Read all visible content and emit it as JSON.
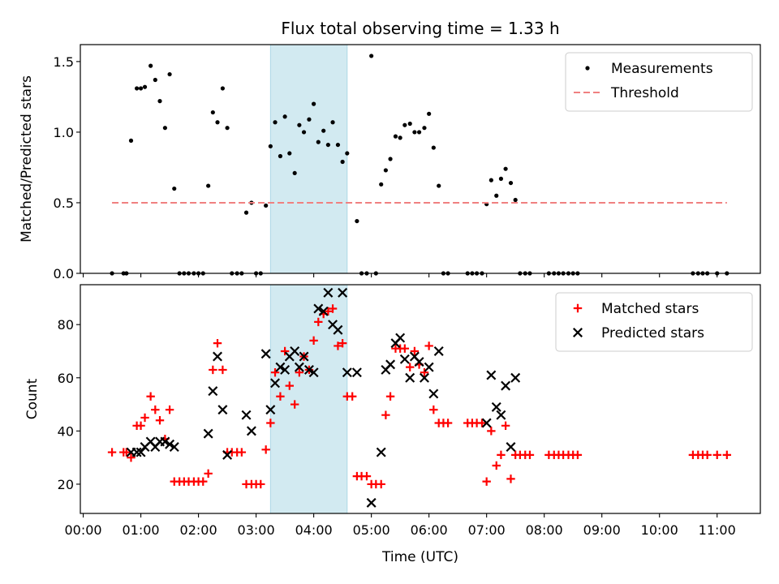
{
  "chart_data": [
    {
      "type": "scatter",
      "title": "Flux total observing time = 1.33 h",
      "xlabel": "",
      "ylabel": "Matched/Predicted stars",
      "xlim": [
        -0.05,
        11.75
      ],
      "ylim": [
        0.0,
        1.62
      ],
      "yticks": [
        0.0,
        0.5,
        1.0,
        1.5
      ],
      "ytick_labels": [
        "0.0",
        "0.5",
        "1.0",
        "1.5"
      ],
      "highlight_span": [
        3.25,
        4.58
      ],
      "highlight_color": "#add8e6",
      "legend_position": "top-right",
      "series": [
        {
          "name": "Measurements",
          "kind": "dot",
          "color": "#000000",
          "points": [
            [
              0.5,
              0
            ],
            [
              0.7,
              0
            ],
            [
              0.75,
              0
            ],
            [
              0.83,
              0.94
            ],
            [
              0.93,
              1.31
            ],
            [
              1.0,
              1.31
            ],
            [
              1.07,
              1.32
            ],
            [
              1.17,
              1.47
            ],
            [
              1.25,
              1.37
            ],
            [
              1.33,
              1.22
            ],
            [
              1.42,
              1.03
            ],
            [
              1.5,
              1.41
            ],
            [
              1.58,
              0.6
            ],
            [
              1.67,
              0
            ],
            [
              1.75,
              0
            ],
            [
              1.83,
              0
            ],
            [
              1.92,
              0
            ],
            [
              2.0,
              0
            ],
            [
              2.08,
              0
            ],
            [
              2.17,
              0.62
            ],
            [
              2.25,
              1.14
            ],
            [
              2.33,
              1.07
            ],
            [
              2.42,
              1.31
            ],
            [
              2.5,
              1.03
            ],
            [
              2.58,
              0
            ],
            [
              2.67,
              0
            ],
            [
              2.75,
              0
            ],
            [
              2.83,
              0.43
            ],
            [
              2.92,
              0.5
            ],
            [
              3.0,
              0
            ],
            [
              3.08,
              0
            ],
            [
              3.17,
              0.48
            ],
            [
              3.25,
              0.9
            ],
            [
              3.33,
              1.07
            ],
            [
              3.42,
              0.83
            ],
            [
              3.5,
              1.11
            ],
            [
              3.58,
              0.85
            ],
            [
              3.67,
              0.71
            ],
            [
              3.75,
              1.05
            ],
            [
              3.83,
              1.0
            ],
            [
              3.92,
              1.09
            ],
            [
              4.0,
              1.2
            ],
            [
              4.08,
              0.93
            ],
            [
              4.17,
              1.01
            ],
            [
              4.25,
              0.91
            ],
            [
              4.33,
              1.07
            ],
            [
              4.42,
              0.91
            ],
            [
              4.5,
              0.79
            ],
            [
              4.58,
              0.85
            ],
            [
              4.75,
              0.37
            ],
            [
              4.83,
              0
            ],
            [
              4.92,
              0
            ],
            [
              5.0,
              1.54
            ],
            [
              5.08,
              0
            ],
            [
              5.17,
              0.63
            ],
            [
              5.25,
              0.73
            ],
            [
              5.33,
              0.81
            ],
            [
              5.42,
              0.97
            ],
            [
              5.5,
              0.96
            ],
            [
              5.58,
              1.05
            ],
            [
              5.67,
              1.06
            ],
            [
              5.75,
              1.0
            ],
            [
              5.83,
              1.0
            ],
            [
              5.92,
              1.03
            ],
            [
              6.0,
              1.13
            ],
            [
              6.08,
              0.89
            ],
            [
              6.17,
              0.62
            ],
            [
              6.25,
              0
            ],
            [
              6.33,
              0
            ],
            [
              6.67,
              0
            ],
            [
              6.75,
              0
            ],
            [
              6.83,
              0
            ],
            [
              6.92,
              0
            ],
            [
              7.0,
              0.49
            ],
            [
              7.08,
              0.66
            ],
            [
              7.17,
              0.55
            ],
            [
              7.25,
              0.67
            ],
            [
              7.33,
              0.74
            ],
            [
              7.42,
              0.64
            ],
            [
              7.5,
              0.52
            ],
            [
              7.58,
              0
            ],
            [
              7.67,
              0
            ],
            [
              7.75,
              0
            ],
            [
              8.08,
              0
            ],
            [
              8.17,
              0
            ],
            [
              8.25,
              0
            ],
            [
              8.33,
              0
            ],
            [
              8.42,
              0
            ],
            [
              8.5,
              0
            ],
            [
              8.58,
              0
            ],
            [
              10.58,
              0
            ],
            [
              10.67,
              0
            ],
            [
              10.75,
              0
            ],
            [
              10.83,
              0
            ],
            [
              11.0,
              0
            ],
            [
              11.17,
              0
            ]
          ]
        },
        {
          "name": "Threshold",
          "kind": "dashed-line",
          "color": "#f08080",
          "x": [
            0.5,
            11.17
          ],
          "y": [
            0.5,
            0.5
          ]
        }
      ]
    },
    {
      "type": "scatter",
      "title": "",
      "xlabel": "Time (UTC)",
      "ylabel": "Count",
      "xlim": [
        -0.05,
        11.75
      ],
      "ylim": [
        9,
        95
      ],
      "yticks": [
        20,
        40,
        60,
        80
      ],
      "ytick_labels": [
        "20",
        "40",
        "60",
        "80"
      ],
      "xticks": [
        0,
        1,
        2,
        3,
        4,
        5,
        6,
        7,
        8,
        9,
        10,
        11
      ],
      "xtick_labels": [
        "00:00",
        "01:00",
        "02:00",
        "03:00",
        "04:00",
        "05:00",
        "06:00",
        "07:00",
        "08:00",
        "09:00",
        "10:00",
        "11:00"
      ],
      "highlight_span": [
        3.25,
        4.58
      ],
      "highlight_color": "#add8e6",
      "legend_position": "top-right",
      "series": [
        {
          "name": "Matched stars",
          "kind": "plus",
          "color": "#ff0000",
          "points": [
            [
              0.5,
              32
            ],
            [
              0.7,
              32
            ],
            [
              0.75,
              32
            ],
            [
              0.83,
              30
            ],
            [
              0.93,
              42
            ],
            [
              1.0,
              42
            ],
            [
              1.07,
              45
            ],
            [
              1.17,
              53
            ],
            [
              1.25,
              48
            ],
            [
              1.33,
              44
            ],
            [
              1.42,
              37
            ],
            [
              1.5,
              48
            ],
            [
              1.58,
              21
            ],
            [
              1.67,
              21
            ],
            [
              1.75,
              21
            ],
            [
              1.83,
              21
            ],
            [
              1.92,
              21
            ],
            [
              2.0,
              21
            ],
            [
              2.08,
              21
            ],
            [
              2.17,
              24
            ],
            [
              2.25,
              63
            ],
            [
              2.33,
              73
            ],
            [
              2.42,
              63
            ],
            [
              2.5,
              32
            ],
            [
              2.58,
              32
            ],
            [
              2.67,
              32
            ],
            [
              2.75,
              32
            ],
            [
              2.83,
              20
            ],
            [
              2.92,
              20
            ],
            [
              3.0,
              20
            ],
            [
              3.08,
              20
            ],
            [
              3.17,
              33
            ],
            [
              3.25,
              43
            ],
            [
              3.33,
              62
            ],
            [
              3.42,
              53
            ],
            [
              3.5,
              70
            ],
            [
              3.58,
              57
            ],
            [
              3.67,
              50
            ],
            [
              3.75,
              62
            ],
            [
              3.83,
              68
            ],
            [
              3.92,
              63
            ],
            [
              4.0,
              74
            ],
            [
              4.08,
              81
            ],
            [
              4.17,
              84
            ],
            [
              4.25,
              85
            ],
            [
              4.33,
              86
            ],
            [
              4.42,
              72
            ],
            [
              4.5,
              73
            ],
            [
              4.58,
              53
            ],
            [
              4.67,
              53
            ],
            [
              4.75,
              23
            ],
            [
              4.83,
              23
            ],
            [
              4.92,
              23
            ],
            [
              5.0,
              20
            ],
            [
              5.08,
              20
            ],
            [
              5.17,
              20
            ],
            [
              5.25,
              46
            ],
            [
              5.33,
              53
            ],
            [
              5.42,
              71
            ],
            [
              5.5,
              71
            ],
            [
              5.58,
              71
            ],
            [
              5.67,
              64
            ],
            [
              5.75,
              70
            ],
            [
              5.83,
              65
            ],
            [
              5.92,
              62
            ],
            [
              6.0,
              72
            ],
            [
              6.08,
              48
            ],
            [
              6.17,
              43
            ],
            [
              6.25,
              43
            ],
            [
              6.33,
              43
            ],
            [
              6.67,
              43
            ],
            [
              6.75,
              43
            ],
            [
              6.83,
              43
            ],
            [
              6.92,
              43
            ],
            [
              7.0,
              21
            ],
            [
              7.08,
              40
            ],
            [
              7.17,
              27
            ],
            [
              7.25,
              31
            ],
            [
              7.33,
              42
            ],
            [
              7.42,
              22
            ],
            [
              7.5,
              31
            ],
            [
              7.58,
              31
            ],
            [
              7.67,
              31
            ],
            [
              7.75,
              31
            ],
            [
              8.08,
              31
            ],
            [
              8.17,
              31
            ],
            [
              8.25,
              31
            ],
            [
              8.33,
              31
            ],
            [
              8.42,
              31
            ],
            [
              8.5,
              31
            ],
            [
              8.58,
              31
            ],
            [
              10.58,
              31
            ],
            [
              10.67,
              31
            ],
            [
              10.75,
              31
            ],
            [
              10.83,
              31
            ],
            [
              11.0,
              31
            ],
            [
              11.17,
              31
            ]
          ]
        },
        {
          "name": "Predicted stars",
          "kind": "cross",
          "color": "#000000",
          "points": [
            [
              0.83,
              32
            ],
            [
              0.93,
              32
            ],
            [
              1.0,
              32
            ],
            [
              1.07,
              34
            ],
            [
              1.17,
              36
            ],
            [
              1.25,
              34
            ],
            [
              1.33,
              36
            ],
            [
              1.42,
              36
            ],
            [
              1.5,
              35
            ],
            [
              1.58,
              34
            ],
            [
              2.17,
              39
            ],
            [
              2.25,
              55
            ],
            [
              2.33,
              68
            ],
            [
              2.42,
              48
            ],
            [
              2.5,
              31
            ],
            [
              2.83,
              46
            ],
            [
              2.92,
              40
            ],
            [
              3.17,
              69
            ],
            [
              3.25,
              48
            ],
            [
              3.33,
              58
            ],
            [
              3.42,
              64
            ],
            [
              3.5,
              63
            ],
            [
              3.58,
              68
            ],
            [
              3.67,
              70
            ],
            [
              3.75,
              64
            ],
            [
              3.83,
              68
            ],
            [
              3.92,
              63
            ],
            [
              4.0,
              62
            ],
            [
              4.08,
              86
            ],
            [
              4.17,
              85
            ],
            [
              4.25,
              92
            ],
            [
              4.33,
              80
            ],
            [
              4.42,
              78
            ],
            [
              4.5,
              92
            ],
            [
              4.58,
              62
            ],
            [
              4.75,
              62
            ],
            [
              5.0,
              13
            ],
            [
              5.17,
              32
            ],
            [
              5.25,
              63
            ],
            [
              5.33,
              65
            ],
            [
              5.42,
              73
            ],
            [
              5.5,
              75
            ],
            [
              5.58,
              67
            ],
            [
              5.67,
              60
            ],
            [
              5.75,
              68
            ],
            [
              5.83,
              66
            ],
            [
              5.92,
              60
            ],
            [
              6.0,
              64
            ],
            [
              6.08,
              54
            ],
            [
              6.17,
              70
            ],
            [
              7.0,
              43
            ],
            [
              7.08,
              61
            ],
            [
              7.17,
              49
            ],
            [
              7.25,
              46
            ],
            [
              7.33,
              57
            ],
            [
              7.42,
              34
            ],
            [
              7.5,
              60
            ]
          ]
        }
      ]
    }
  ]
}
